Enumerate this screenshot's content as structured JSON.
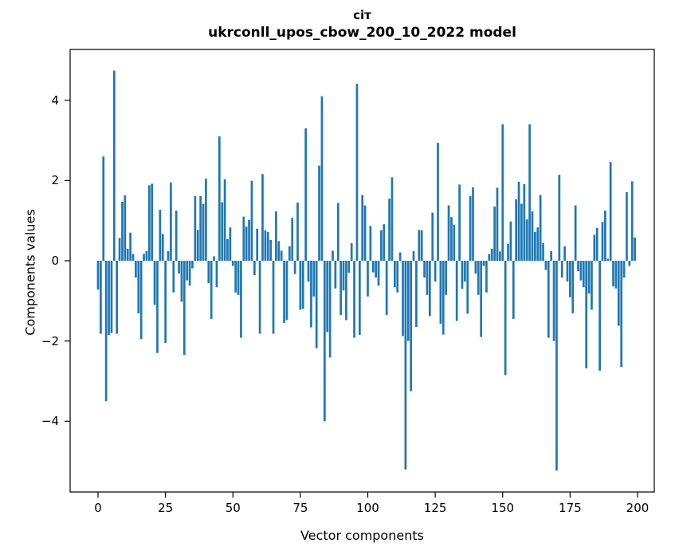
{
  "chart_data": {
    "type": "bar",
    "title_line1": "сіт",
    "title_line2": "ukrconll_upos_cbow_200_10_2022 model",
    "xlabel": "Vector components",
    "ylabel": "Components values",
    "bar_color": "#1f77b4",
    "spine_color": "#000000",
    "xlim": [
      -10.4,
      209.4
    ],
    "ylim": [
      -5.73,
      5.27
    ],
    "grid": false,
    "legend": "none",
    "xticks": [
      {
        "value": 0,
        "label": "0"
      },
      {
        "value": 25,
        "label": "25"
      },
      {
        "value": 50,
        "label": "50"
      },
      {
        "value": 75,
        "label": "75"
      },
      {
        "value": 100,
        "label": "100"
      },
      {
        "value": 125,
        "label": "125"
      },
      {
        "value": 150,
        "label": "150"
      },
      {
        "value": 175,
        "label": "175"
      },
      {
        "value": 200,
        "label": "200"
      }
    ],
    "yticks": [
      {
        "value": -4,
        "label": "−4"
      },
      {
        "value": -2,
        "label": "−2"
      },
      {
        "value": 0,
        "label": "0"
      },
      {
        "value": 2,
        "label": "2"
      },
      {
        "value": 4,
        "label": "4"
      }
    ],
    "x_start": 0,
    "values": [
      -0.72,
      -1.82,
      2.6,
      -3.5,
      -1.85,
      -1.8,
      4.74,
      -1.82,
      0.57,
      1.47,
      1.63,
      0.3,
      0.7,
      0.17,
      -0.42,
      -1.31,
      -1.95,
      0.17,
      0.24,
      1.88,
      1.92,
      -1.1,
      -2.3,
      1.27,
      0.67,
      -2.05,
      0.24,
      1.95,
      -0.79,
      1.25,
      -0.32,
      -1.02,
      -2.35,
      -0.49,
      -0.62,
      -0.19,
      1.61,
      0.77,
      1.61,
      1.42,
      2.05,
      -0.56,
      -1.45,
      0.11,
      -0.66,
      3.1,
      1.46,
      2.03,
      0.54,
      0.83,
      -0.13,
      -0.79,
      -0.85,
      -1.92,
      1.1,
      0.85,
      1.02,
      1.99,
      -0.36,
      0.8,
      -1.82,
      2.16,
      0.76,
      0.72,
      0.52,
      -1.82,
      1.23,
      0.49,
      0.25,
      -1.55,
      -1.48,
      0.36,
      1.07,
      -0.33,
      1.45,
      -1.22,
      -1.2,
      3.3,
      -0.52,
      -1.66,
      -0.89,
      -2.18,
      2.37,
      4.1,
      -4.0,
      -1.78,
      -2.41,
      0.25,
      -0.69,
      1.44,
      -1.35,
      -0.74,
      -1.48,
      -0.3,
      0.44,
      -1.92,
      4.41,
      -1.85,
      1.64,
      1.38,
      -0.89,
      0.87,
      -0.29,
      -0.42,
      -0.62,
      0.76,
      0.91,
      -1.35,
      1.55,
      2.08,
      -0.66,
      -0.79,
      0.21,
      -1.88,
      -5.2,
      -2.0,
      -3.25,
      0.24,
      -1.65,
      0.77,
      0.76,
      -0.42,
      -0.85,
      -1.38,
      1.2,
      -0.52,
      2.94,
      -1.57,
      -1.84,
      -0.85,
      1.38,
      1.09,
      0.9,
      -1.5,
      1.9,
      -0.7,
      -0.52,
      -1.32,
      1.61,
      1.83,
      -0.32,
      -0.85,
      -1.9,
      -0.13,
      -0.79,
      0.17,
      0.3,
      1.35,
      1.82,
      0.23,
      3.4,
      -2.85,
      0.42,
      0.98,
      -1.45,
      1.53,
      1.97,
      1.42,
      1.91,
      1.03,
      3.4,
      1.23,
      0.72,
      0.83,
      1.64,
      0.44,
      -0.23,
      -1.92,
      0.24,
      -2.0,
      -5.23,
      2.14,
      -0.42,
      0.36,
      -0.52,
      -0.91,
      -1.31,
      1.38,
      -0.26,
      -0.49,
      -0.66,
      -2.68,
      -0.82,
      -1.22,
      0.65,
      0.82,
      -2.74,
      0.97,
      1.25,
      0.05,
      2.46,
      -0.64,
      -0.69,
      -1.62,
      -2.65,
      -0.42,
      1.71,
      -0.13,
      1.98,
      0.58
    ]
  }
}
